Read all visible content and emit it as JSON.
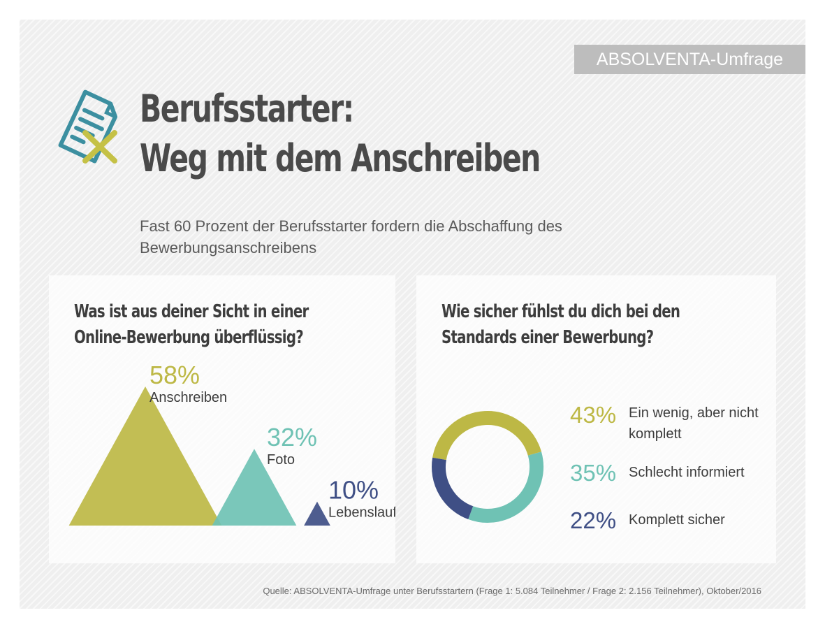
{
  "badge": "ABSOLVENTA-Umfrage",
  "title_line1": "Berufsstarter:",
  "title_line2": "Weg mit dem Anschreiben",
  "subtitle": "Fast 60 Prozent der Berufsstarter fordern die Abschaffung des Bewerbungsanschreibens",
  "footer": "Quelle: ABSOLVENTA-Umfrage unter Berufsstartern (Frage 1: 5.084 Teilnehmer / Frage 2: 2.156 Teilnehmer), Oktober/2016",
  "colors": {
    "olive": "#bdb845",
    "teal": "#6fc2b4",
    "navy": "#3f4f85",
    "icon_teal": "#3c8fa0",
    "icon_olive": "#c5c146"
  },
  "chart_data": [
    {
      "type": "triangle-area",
      "title_line1": "Was ist aus deiner Sicht in einer",
      "title_line2": "Online-Bewerbung überflüssig?",
      "categories": [
        "Anschreiben",
        "Foto",
        "Lebenslauf"
      ],
      "values": [
        58,
        32,
        10
      ],
      "value_labels": [
        "58%",
        "32%",
        "10%"
      ],
      "colors": [
        "#bdb845",
        "#6fc2b4",
        "#3f4f85"
      ]
    },
    {
      "type": "pie",
      "variant": "donut",
      "title_line1": "Wie sicher fühlst du dich bei den",
      "title_line2": "Standards einer Bewerbung?",
      "categories": [
        "Ein wenig, aber nicht komplett",
        "Schlecht informiert",
        "Komplett sicher"
      ],
      "values": [
        43,
        35,
        22
      ],
      "value_labels": [
        "43%",
        "35%",
        "22%"
      ],
      "colors": [
        "#bdb845",
        "#6fc2b4",
        "#3f4f85"
      ]
    }
  ]
}
